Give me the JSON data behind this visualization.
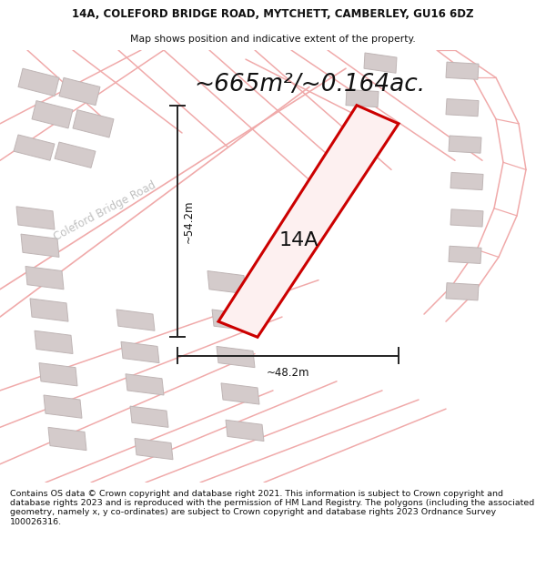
{
  "title_line1": "14A, COLEFORD BRIDGE ROAD, MYTCHETT, CAMBERLEY, GU16 6DZ",
  "title_line2": "Map shows position and indicative extent of the property.",
  "area_text": "~665m²/~0.164ac.",
  "label_14A": "14A",
  "dim_vertical": "~54.2m",
  "dim_horizontal": "~48.2m",
  "road_label": "Coleford Bridge Road",
  "footer_text": "Contains OS data © Crown copyright and database right 2021. This information is subject to Crown copyright and database rights 2023 and is reproduced with the permission of HM Land Registry. The polygons (including the associated geometry, namely x, y co-ordinates) are subject to Crown copyright and database rights 2023 Ordnance Survey 100026316.",
  "bg_color": "#ffffff",
  "map_bg": "#f7f3f3",
  "building_fill": "#d4cbcb",
  "building_edge": "#bfb5b5",
  "road_line_color": "#f0aaaa",
  "property_color": "#cc0000",
  "property_fill": "#fdf0f0",
  "dim_line_color": "#222222",
  "title_fontsize": 8.5,
  "subtitle_fontsize": 7.8,
  "area_fontsize": 19,
  "label_fontsize": 16,
  "dim_fontsize": 8.5,
  "road_label_fontsize": 8.5,
  "footer_fontsize": 6.8
}
